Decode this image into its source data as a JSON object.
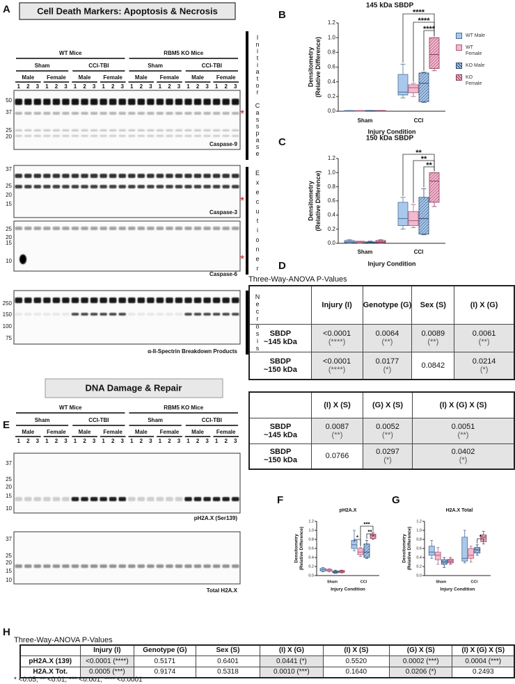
{
  "panel_labels": [
    "A",
    "B",
    "C",
    "D",
    "E",
    "F",
    "G",
    "H"
  ],
  "panel_a": {
    "title": "Cell Death Markers: Apoptosis & Necrosis",
    "header": {
      "mice": [
        "WT Mice",
        "RBM5 KO Mice"
      ],
      "injury": [
        "Sham",
        "CCI-TBI"
      ],
      "sex": [
        "Male",
        "Female"
      ],
      "lanes": [
        "1",
        "2",
        "3"
      ]
    },
    "blots": [
      {
        "label": "Caspase-9",
        "mw": [
          "50",
          "37",
          "25",
          "20"
        ]
      },
      {
        "label": "Caspase-3",
        "mw": [
          "37",
          "25",
          "20",
          "15"
        ]
      },
      {
        "label": "Caspase-6",
        "mw": [
          "25",
          "20",
          "15",
          "10"
        ]
      },
      {
        "label": "α-II-Spectrin Breakdown Products",
        "mw": [
          "250",
          "150",
          "100",
          "75"
        ]
      }
    ],
    "sections": [
      "Initiator Casspase",
      "Executioner",
      "Necrosis"
    ],
    "marker": "*"
  },
  "panel_e": {
    "title": "DNA Damage & Repair",
    "header": {
      "mice": [
        "WT Mice",
        "RBM5 KO Mice"
      ],
      "injury": [
        "Sham",
        "CCI-TBI"
      ],
      "sex": [
        "Male",
        "Female"
      ],
      "lanes": [
        "1",
        "2",
        "3"
      ]
    },
    "blots": [
      {
        "label": "pH2A.X (Ser139)",
        "mw": [
          "37",
          "25",
          "20",
          "15",
          "10"
        ]
      },
      {
        "label": "Total H2A.X",
        "mw": [
          "37",
          "25",
          "20",
          "15",
          "10"
        ]
      }
    ]
  },
  "chart_data": [
    {
      "type": "box",
      "title": "145 kDa SBDP",
      "ylabel": [
        "Densitometry",
        "(Relative Difference)"
      ],
      "xlabel": "Injury Condition",
      "categories": [
        "Sham",
        "CCI"
      ],
      "ylim": [
        0,
        1.2
      ],
      "yticks": [
        {
          "value": 0,
          "label": "0.0"
        },
        0.2,
        0.4,
        0.6,
        0.8,
        {
          "value": 1,
          "label": "1.0"
        },
        1.2
      ],
      "legend": "right",
      "series": [
        {
          "name": "WT Male",
          "color": "#a9c9ec",
          "edgecolor": "#4c6c96",
          "hatch": false,
          "values": [
            [
              0,
              0,
              0.005,
              0.01,
              0.01
            ],
            [
              0.18,
              0.22,
              0.26,
              0.5,
              0.64
            ]
          ]
        },
        {
          "name": "WT Female",
          "color": "#f4b8cf",
          "edgecolor": "#a86079",
          "hatch": false,
          "values": [
            [
              0,
              0,
              0.005,
              0.01,
              0.01
            ],
            [
              0.2,
              0.25,
              0.32,
              0.36,
              0.38
            ]
          ]
        },
        {
          "name": "KO Male",
          "color": "#a9c9ec",
          "edgecolor": "#2c4a72",
          "hatch": true,
          "values": [
            [
              0,
              0,
              0.005,
              0.01,
              0.01
            ],
            [
              0.12,
              0.13,
              0.38,
              0.52,
              0.53
            ]
          ]
        },
        {
          "name": "KO Female",
          "color": "#f4b8cf",
          "edgecolor": "#8a3a5a",
          "hatch": true,
          "values": [
            [
              0,
              0,
              0.005,
              0.01,
              0.01
            ],
            [
              0.55,
              0.58,
              0.77,
              1.0,
              1.0
            ]
          ]
        }
      ],
      "annotations": [
        "****",
        "****",
        "****"
      ]
    },
    {
      "type": "box",
      "title": "150 kDa SBDP",
      "ylabel": [
        "Densitometry",
        "(Relative Difference)"
      ],
      "xlabel": "Injury Condition",
      "categories": [
        "Sham",
        "CCI"
      ],
      "ylim": [
        0,
        1.2
      ],
      "yticks": [
        {
          "value": 0,
          "label": "0.0"
        },
        0.2,
        0.4,
        0.6,
        0.8,
        {
          "value": 1,
          "label": "1.0"
        },
        1.2
      ],
      "series": [
        {
          "color": "#a9c9ec",
          "edgecolor": "#4c6c96",
          "hatch": false,
          "values": [
            [
              0,
              0.01,
              0.02,
              0.04,
              0.05
            ],
            [
              0.2,
              0.25,
              0.35,
              0.58,
              0.65
            ]
          ]
        },
        {
          "color": "#f4b8cf",
          "edgecolor": "#a86079",
          "hatch": false,
          "values": [
            [
              0,
              0.01,
              0.02,
              0.03,
              0.03
            ],
            [
              0.22,
              0.25,
              0.32,
              0.45,
              0.55
            ]
          ]
        },
        {
          "color": "#a9c9ec",
          "edgecolor": "#2c4a72",
          "hatch": true,
          "values": [
            [
              0,
              0.005,
              0.01,
              0.02,
              0.03
            ],
            [
              0.12,
              0.13,
              0.35,
              0.65,
              0.77
            ]
          ]
        },
        {
          "color": "#f4b8cf",
          "edgecolor": "#8a3a5a",
          "hatch": true,
          "values": [
            [
              0,
              0.01,
              0.02,
              0.04,
              0.05
            ],
            [
              0.52,
              0.58,
              0.88,
              1.0,
              1.0
            ]
          ]
        }
      ],
      "annotations": [
        "**",
        "**",
        "**"
      ]
    },
    {
      "type": "box",
      "title": "pH2A.X",
      "ylabel": [
        "Densitometry",
        "(Relative Difference)"
      ],
      "xlabel": "Injury Condition",
      "categories": [
        "Sham",
        "CCI"
      ],
      "ylim": [
        0,
        1.2
      ],
      "yticks": [
        {
          "value": 0,
          "label": "0.0"
        },
        0.2,
        0.4,
        0.6,
        0.8,
        {
          "value": 1,
          "label": "1.0"
        },
        1.2
      ],
      "series": [
        {
          "color": "#a9c9ec",
          "edgecolor": "#4c6c96",
          "hatch": false,
          "values": [
            [
              0.08,
              0.1,
              0.13,
              0.16,
              0.18
            ],
            [
              0.55,
              0.6,
              0.68,
              0.78,
              1.0
            ]
          ]
        },
        {
          "color": "#f4b8cf",
          "edgecolor": "#a86079",
          "hatch": false,
          "values": [
            [
              0.08,
              0.1,
              0.12,
              0.14,
              0.15
            ],
            [
              0.42,
              0.46,
              0.52,
              0.6,
              0.62
            ]
          ]
        },
        {
          "color": "#a9c9ec",
          "edgecolor": "#2c4a72",
          "hatch": true,
          "values": [
            [
              0.05,
              0.06,
              0.08,
              0.1,
              0.12
            ],
            [
              0.38,
              0.4,
              0.52,
              0.7,
              0.78
            ]
          ]
        },
        {
          "color": "#f4b8cf",
          "edgecolor": "#8a3a5a",
          "hatch": true,
          "values": [
            [
              0.06,
              0.07,
              0.09,
              0.11,
              0.12
            ],
            [
              0.8,
              0.82,
              0.88,
              0.92,
              0.96
            ]
          ]
        }
      ],
      "annotations": [
        "*",
        "***",
        "**"
      ]
    },
    {
      "type": "box",
      "title": "H2A.X Total",
      "ylabel": [
        "Densitometry",
        "(Relative Difference)"
      ],
      "xlabel": "Injury Condition",
      "categories": [
        "Sham",
        "CCI"
      ],
      "ylim": [
        0,
        1.2
      ],
      "yticks": [
        {
          "value": 0,
          "label": "0.0"
        },
        0.2,
        0.4,
        0.6,
        0.8,
        {
          "value": 1,
          "label": "1.0"
        },
        1.2
      ],
      "series": [
        {
          "color": "#a9c9ec",
          "edgecolor": "#4c6c96",
          "hatch": false,
          "values": [
            [
              0.38,
              0.45,
              0.52,
              0.65,
              0.78
            ],
            [
              0.28,
              0.32,
              0.38,
              0.85,
              1.0
            ]
          ]
        },
        {
          "color": "#f4b8cf",
          "edgecolor": "#a86079",
          "hatch": false,
          "values": [
            [
              0.25,
              0.35,
              0.45,
              0.52,
              0.62
            ],
            [
              0.3,
              0.38,
              0.45,
              0.6,
              0.65
            ]
          ]
        },
        {
          "color": "#a9c9ec",
          "edgecolor": "#2c4a72",
          "hatch": true,
          "values": [
            [
              0.18,
              0.25,
              0.3,
              0.35,
              0.4
            ],
            [
              0.45,
              0.5,
              0.57,
              0.62,
              0.68
            ]
          ]
        },
        {
          "color": "#f4b8cf",
          "edgecolor": "#8a3a5a",
          "hatch": true,
          "values": [
            [
              0.25,
              0.28,
              0.32,
              0.36,
              0.4
            ],
            [
              0.7,
              0.75,
              0.85,
              0.9,
              0.98
            ]
          ]
        }
      ],
      "annotations": [
        "*"
      ]
    }
  ],
  "panel_d": {
    "title": "Three-Way-ANOVA P-Values",
    "tables": [
      {
        "columns": [
          "Injury (I)",
          "Genotype (G)",
          "Sex (S)",
          "(I) X (G)"
        ],
        "rows": [
          {
            "label": [
              "SBDP",
              "~145 kDa"
            ],
            "cells": [
              [
                "<0.0001",
                "(****)"
              ],
              [
                "0.0064",
                "(**)"
              ],
              [
                "0.0089",
                "(**)"
              ],
              [
                "0.0061",
                "(**)"
              ]
            ]
          },
          {
            "label": [
              "SBDP",
              "~150 kDa"
            ],
            "cells": [
              [
                "<0.0001",
                "(****)"
              ],
              [
                "0.0177",
                "(*)"
              ],
              [
                "0.0842"
              ],
              [
                "0.0214",
                "(*)"
              ]
            ]
          }
        ]
      },
      {
        "columns": [
          "(I) X (S)",
          "(G) X (S)",
          "(I) X (G) X (S)"
        ],
        "rows": [
          {
            "label": [
              "SBDP",
              "~145 kDa"
            ],
            "cells": [
              [
                "0.0087",
                "(**)"
              ],
              [
                "0.0052",
                "(**)"
              ],
              [
                "0.0051",
                "(**)"
              ]
            ]
          },
          {
            "label": [
              "SBDP",
              "~150 kDa"
            ],
            "cells": [
              [
                "0.0766"
              ],
              [
                "0.0297",
                "(*)"
              ],
              [
                "0.0402",
                "(*)"
              ]
            ]
          }
        ]
      }
    ]
  },
  "panel_h": {
    "title": "Three-Way-ANOVA P-Values",
    "columns": [
      "Injury (I)",
      "Genotype (G)",
      "Sex (S)",
      "(I) X (G)",
      "(I) X (S)",
      "(G) X (S)",
      "(I) X (G) X (S)"
    ],
    "rows": [
      {
        "label": "pH2A.X (139)",
        "cells": [
          "<0.0001 (****)",
          "0.5171",
          "0.6401",
          "0.0441 (*)",
          "0.5520",
          "0.0002 (***)",
          "0.0004 (***)"
        ]
      },
      {
        "label": "H2A.X Tot.",
        "cells": [
          "0.0005 (***)",
          "0.9174",
          "0.5318",
          "0.0010 (***)",
          "0.1640",
          "0.0206 (*)",
          "0.2493"
        ]
      }
    ]
  },
  "footnote": "* <0.05; ** <0.01; *** <0.001; **** <0.0001"
}
